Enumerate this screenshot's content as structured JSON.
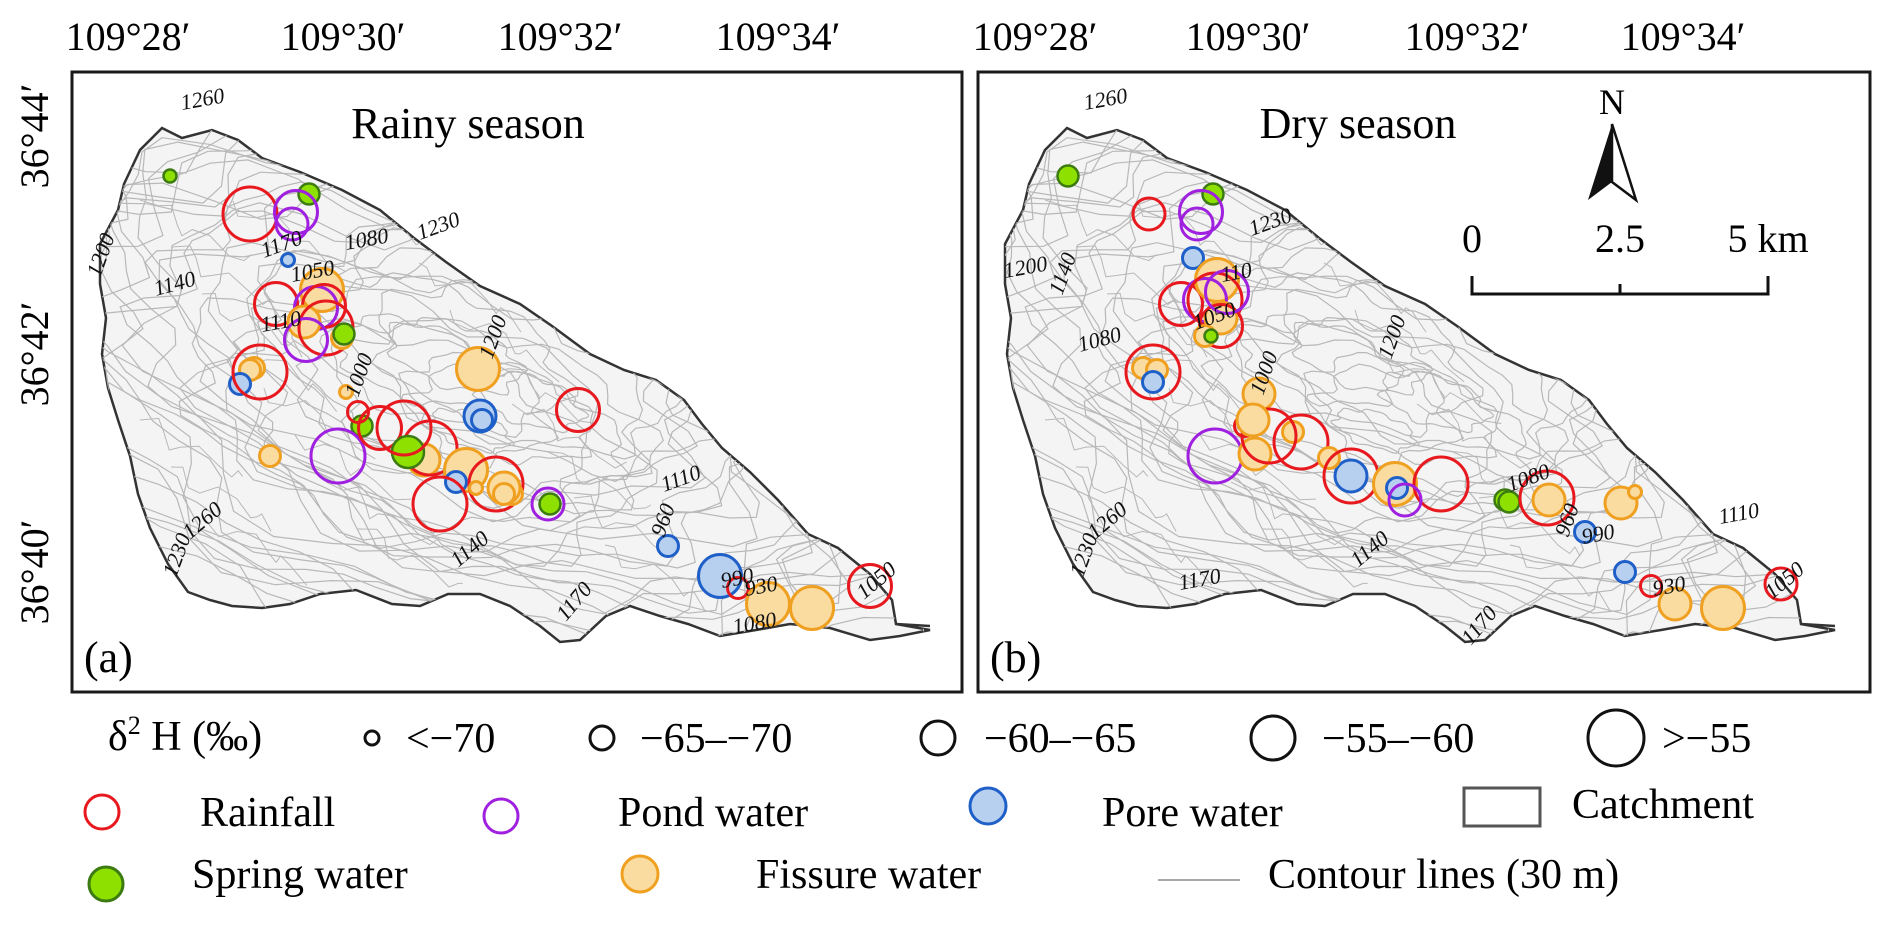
{
  "panels": [
    {
      "id": "a",
      "title": "Rainy season",
      "label": "(a)",
      "top_ticks": [
        "109°28′",
        "109°30′",
        "109°32′",
        "109°34′"
      ],
      "left_ticks": [
        "36°44′",
        "36°42′",
        "36°40′"
      ],
      "contour_labels": [
        "1260",
        "1230",
        "1080",
        "1170",
        "1050",
        "1200",
        "1140",
        "1110",
        "1200",
        "1000",
        "1110",
        "960",
        "990",
        "930",
        "1080",
        "1050",
        "1260",
        "1230",
        "1140",
        "1170"
      ],
      "samples": [
        {
          "type": "spring",
          "size": 0
        },
        {
          "type": "spring",
          "size": 1
        },
        {
          "type": "rainfall",
          "size": 4
        },
        {
          "type": "pond",
          "size": 3
        },
        {
          "type": "pond",
          "size": 2
        },
        {
          "type": "pore",
          "size": 0
        },
        {
          "type": "rainfall",
          "size": 3
        },
        {
          "type": "fissure",
          "size": 3
        },
        {
          "type": "pond",
          "size": 3
        },
        {
          "type": "rainfall",
          "size": 3
        },
        {
          "type": "fissure",
          "size": 2
        },
        {
          "type": "rainfall",
          "size": 4
        },
        {
          "type": "fissure",
          "size": 1
        },
        {
          "type": "spring",
          "size": 1
        },
        {
          "type": "pond",
          "size": 3
        },
        {
          "type": "fissure",
          "size": 1
        },
        {
          "type": "fissure",
          "size": 1
        },
        {
          "type": "pore",
          "size": 1
        },
        {
          "type": "rainfall",
          "size": 4
        },
        {
          "type": "fissure",
          "size": 0
        },
        {
          "type": "spring",
          "size": 1
        },
        {
          "type": "rainfall",
          "size": 1
        },
        {
          "type": "pond",
          "size": 4
        },
        {
          "type": "fissure",
          "size": 1
        },
        {
          "type": "rainfall",
          "size": 3
        },
        {
          "type": "fissure",
          "size": 2
        },
        {
          "type": "rainfall",
          "size": 4
        },
        {
          "type": "fissure",
          "size": 3
        },
        {
          "type": "pore",
          "size": 1
        },
        {
          "type": "rainfall",
          "size": 4
        },
        {
          "type": "fissure",
          "size": 1
        },
        {
          "type": "fissure",
          "size": 0
        },
        {
          "type": "rainfall",
          "size": 3
        },
        {
          "type": "pore",
          "size": 2
        },
        {
          "type": "pore",
          "size": 1
        },
        {
          "type": "rainfall",
          "size": 4
        },
        {
          "type": "pond",
          "size": 2
        },
        {
          "type": "spring",
          "size": 1
        },
        {
          "type": "spring",
          "size": 2
        },
        {
          "type": "rainfall",
          "size": 4
        },
        {
          "type": "fissure",
          "size": 1
        },
        {
          "type": "fissure",
          "size": 3
        },
        {
          "type": "fissure",
          "size": 2
        },
        {
          "type": "fissure",
          "size": 1
        },
        {
          "type": "pore",
          "size": 1
        },
        {
          "type": "pore",
          "size": 3
        },
        {
          "type": "rainfall",
          "size": 1
        },
        {
          "type": "fissure",
          "size": 3
        },
        {
          "type": "fissure",
          "size": 3
        },
        {
          "type": "rainfall",
          "size": 3
        }
      ]
    },
    {
      "id": "b",
      "title": "Dry season",
      "label": "(b)",
      "top_ticks": [
        "109°28′",
        "109°30′",
        "109°32′",
        "109°34′"
      ],
      "contour_labels": [
        "1260",
        "1230",
        "110",
        "1050",
        "1200",
        "1140",
        "1080",
        "1170",
        "1200",
        "1000",
        "1080",
        "960",
        "990",
        "1110",
        "930",
        "1050",
        "1260",
        "1230",
        "1140",
        "1170"
      ],
      "samples": [
        {
          "type": "spring",
          "size": 1
        },
        {
          "type": "spring",
          "size": 1
        },
        {
          "type": "rainfall",
          "size": 2
        },
        {
          "type": "pond",
          "size": 3
        },
        {
          "type": "pond",
          "size": 2
        },
        {
          "type": "pore",
          "size": 1
        },
        {
          "type": "rainfall",
          "size": 3
        },
        {
          "type": "fissure",
          "size": 3
        },
        {
          "type": "pond",
          "size": 3
        },
        {
          "type": "rainfall",
          "size": 4
        },
        {
          "type": "fissure",
          "size": 2
        },
        {
          "type": "rainfall",
          "size": 3
        },
        {
          "type": "fissure",
          "size": 1
        },
        {
          "type": "spring",
          "size": 0
        },
        {
          "type": "pond",
          "size": 3
        },
        {
          "type": "fissure",
          "size": 1
        },
        {
          "type": "fissure",
          "size": 1
        },
        {
          "type": "pore",
          "size": 1
        },
        {
          "type": "rainfall",
          "size": 4
        },
        {
          "type": "fissure",
          "size": 2
        },
        {
          "type": "rainfall",
          "size": 1
        },
        {
          "type": "pond",
          "size": 4
        },
        {
          "type": "fissure",
          "size": 2
        },
        {
          "type": "fissure",
          "size": 1
        },
        {
          "type": "rainfall",
          "size": 4
        },
        {
          "type": "fissure",
          "size": 2
        },
        {
          "type": "rainfall",
          "size": 4
        },
        {
          "type": "pore",
          "size": 2
        },
        {
          "type": "fissure",
          "size": 1
        },
        {
          "type": "rainfall",
          "size": 4
        },
        {
          "type": "fissure",
          "size": 3
        },
        {
          "type": "pore",
          "size": 1
        },
        {
          "type": "rainfall",
          "size": 4
        },
        {
          "type": "pond",
          "size": 2
        },
        {
          "type": "spring",
          "size": 1
        },
        {
          "type": "spring",
          "size": 1
        },
        {
          "type": "rainfall",
          "size": 4
        },
        {
          "type": "fissure",
          "size": 2
        },
        {
          "type": "fissure",
          "size": 2
        },
        {
          "type": "fissure",
          "size": 0
        },
        {
          "type": "pore",
          "size": 1
        },
        {
          "type": "pore",
          "size": 1
        },
        {
          "type": "rainfall",
          "size": 1
        },
        {
          "type": "fissure",
          "size": 2
        },
        {
          "type": "fissure",
          "size": 3
        },
        {
          "type": "rainfall",
          "size": 2
        }
      ],
      "north_arrow": "N",
      "scale_bar": {
        "labels": [
          "0",
          "2.5",
          "5 km"
        ]
      }
    }
  ],
  "legend": {
    "size_title": "δ",
    "size_title_sup": "2",
    "size_title_rest": " H (‰)",
    "size_classes": [
      "<−70",
      "−65–−70",
      "−60–−65",
      "−55–−60",
      ">−55"
    ],
    "types": [
      {
        "key": "rainfall",
        "label": "Rainfall"
      },
      {
        "key": "pond",
        "label": "Pond water"
      },
      {
        "key": "pore",
        "label": "Pore water"
      },
      {
        "key": "catchment",
        "label": "Catchment"
      },
      {
        "key": "spring",
        "label": "Spring water"
      },
      {
        "key": "fissure",
        "label": "Fissure water"
      },
      {
        "key": "contour",
        "label": "Contour lines (30 m)"
      }
    ]
  },
  "colors": {
    "rainfall": "#e8191e",
    "pond": "#a020e0",
    "pore_stroke": "#1f5fc8",
    "pore_fill": "#b8d0f0",
    "spring_stroke": "#3c7a12",
    "spring_fill": "#8ee000",
    "fissure_stroke": "#f0a020",
    "fissure_fill": "#fbdca0",
    "contour": "#b8b8b8",
    "catchment_fill": "#f4f4f4",
    "frame": "#1a1a1a"
  }
}
